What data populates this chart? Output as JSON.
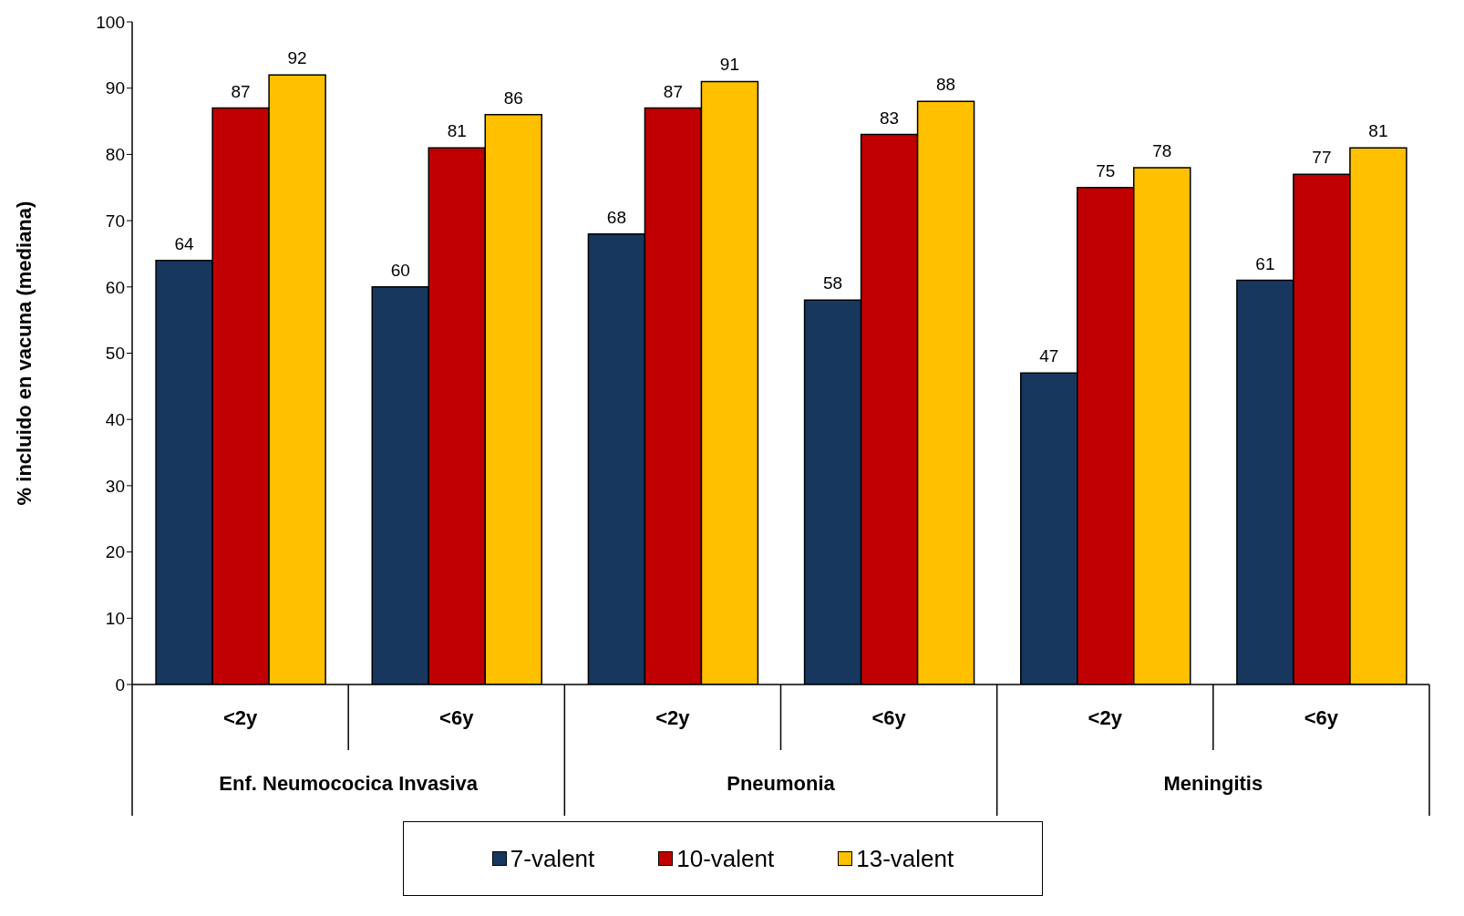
{
  "chart_data": {
    "type": "bar",
    "ylabel": "% incluido en vacuna (mediana)",
    "categories": [
      "<2y",
      "<6y",
      "<2y",
      "<6y",
      "<2y",
      "<6y"
    ],
    "annotations": [
      "Enf. Neumococica Invasiva",
      "Pneumonia",
      "Meningitis"
    ],
    "series": [
      {
        "name": "7-valent",
        "color": "#17375e",
        "values": [
          64,
          60,
          68,
          58,
          47,
          61
        ]
      },
      {
        "name": "10-valent",
        "color": "#c00000",
        "values": [
          87,
          81,
          87,
          83,
          75,
          77
        ]
      },
      {
        "name": "13-valent",
        "color": "#ffc000",
        "values": [
          92,
          86,
          91,
          88,
          78,
          81
        ]
      }
    ],
    "ylim": [
      0,
      100
    ],
    "yticks": [
      0,
      10,
      20,
      30,
      40,
      50,
      60,
      70,
      80,
      90,
      100
    ],
    "data_labels": true,
    "legend": "bottom"
  }
}
